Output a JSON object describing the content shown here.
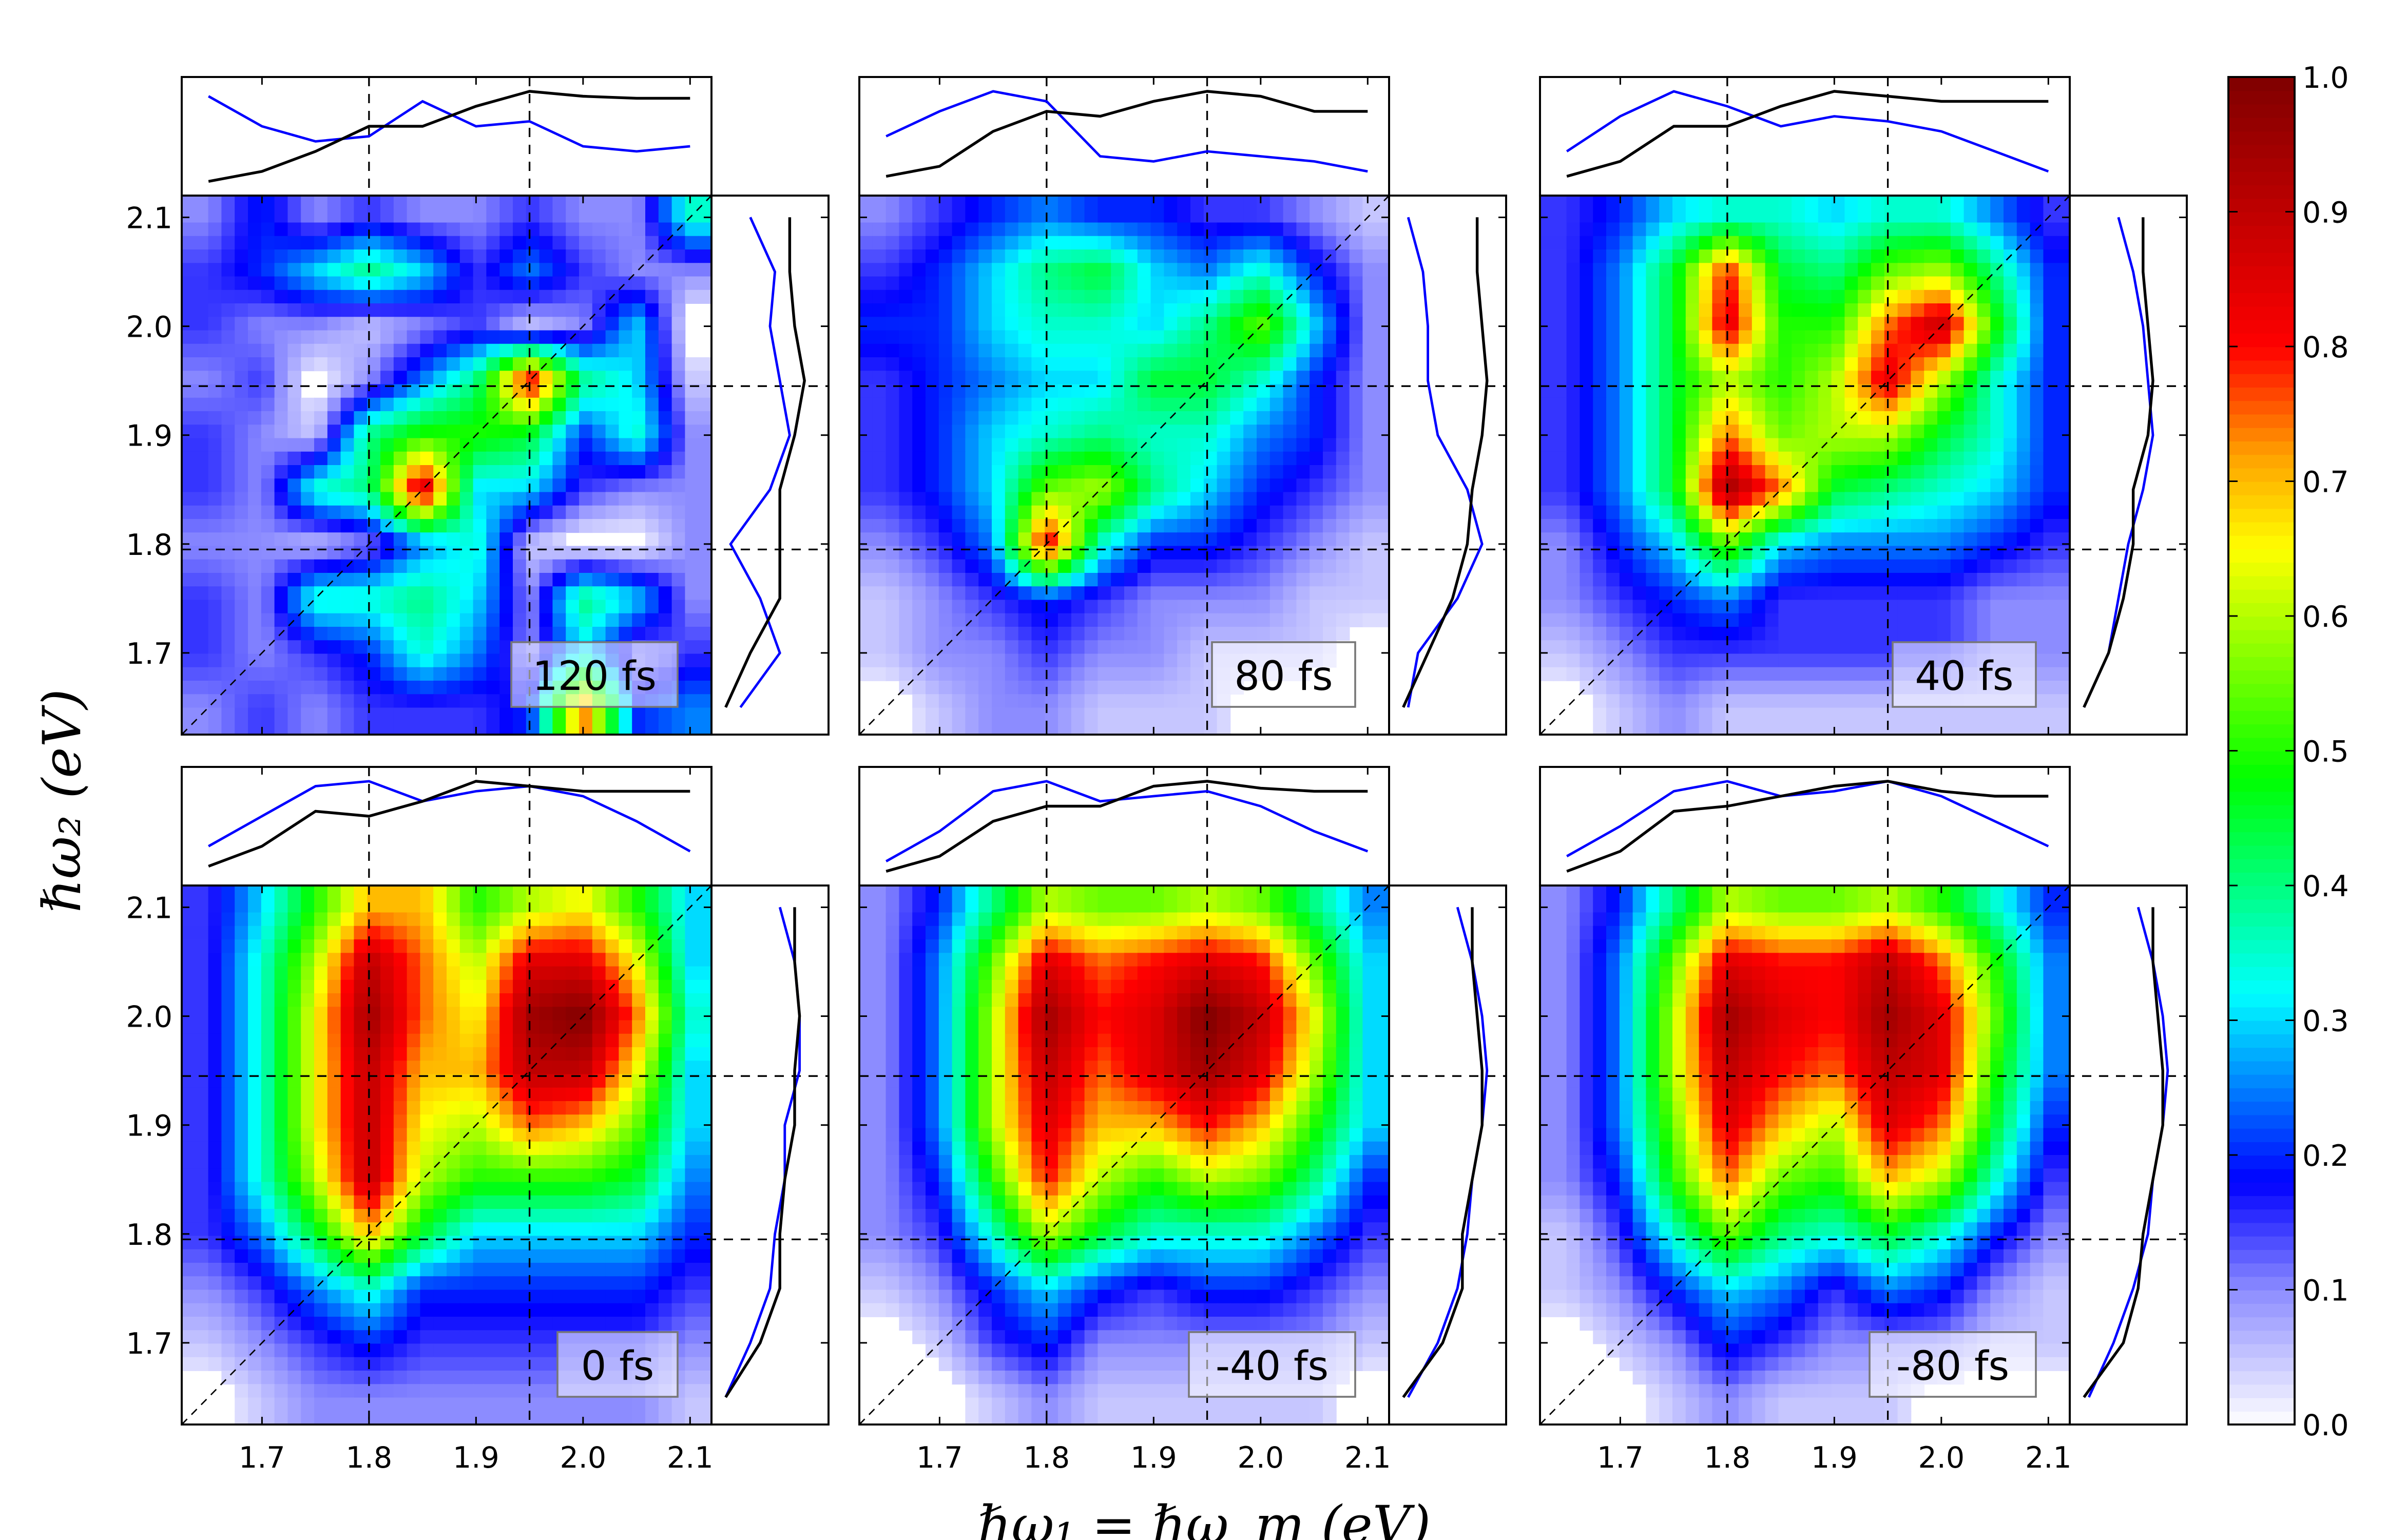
{
  "chart_data": {
    "type": "heatmap",
    "xlabel": "ℏω₁ = ℏω_m (eV)",
    "ylabel": "ℏω₂ (eV)",
    "xlim": [
      1.625,
      2.12
    ],
    "ylim": [
      1.625,
      2.12
    ],
    "xticks": [
      "1.7",
      "1.8",
      "1.9",
      "2.0",
      "2.1"
    ],
    "xtick_values": [
      1.7,
      1.8,
      1.9,
      2.0,
      2.1
    ],
    "yticks": [
      "1.7",
      "1.8",
      "1.9",
      "2.0",
      "2.1"
    ],
    "ytick_values": [
      1.7,
      1.8,
      1.9,
      2.0,
      2.1
    ],
    "reference_lines": {
      "vertical": [
        1.8,
        1.95
      ],
      "horizontal": [
        1.795,
        1.945
      ],
      "diagonal": true
    },
    "grid_axis": [
      1.65,
      1.7,
      1.75,
      1.8,
      1.85,
      1.9,
      1.95,
      2.0,
      2.05,
      2.1
    ],
    "colorbar": {
      "ticks": [
        "0.0",
        "0.1",
        "0.2",
        "0.3",
        "0.4",
        "0.5",
        "0.6",
        "0.7",
        "0.8",
        "0.9",
        "1.0"
      ],
      "range": [
        0,
        1
      ],
      "colormap": [
        [
          0,
          "#ffffff"
        ],
        [
          0.1,
          "#8c8cff"
        ],
        [
          0.18,
          "#0000ff"
        ],
        [
          0.32,
          "#00ffff"
        ],
        [
          0.48,
          "#00ff00"
        ],
        [
          0.65,
          "#ffff00"
        ],
        [
          0.72,
          "#ffa000"
        ],
        [
          0.8,
          "#ff0000"
        ],
        [
          1,
          "#7f0000"
        ]
      ]
    },
    "marginal_colors": {
      "black_curve": "#000000",
      "blue_curve": "#0000ff"
    },
    "panels": [
      {
        "label": "120 fs",
        "values_rows_top_to_bottom": [
          [
            0.1,
            0.2,
            0.1,
            0.15,
            0.1,
            0.1,
            0.15,
            0.1,
            0.1,
            0.35
          ],
          [
            0.15,
            0.2,
            0.3,
            0.4,
            0.3,
            0.15,
            0.25,
            0.15,
            0.1,
            0.1
          ],
          [
            0.15,
            0.1,
            0.1,
            0.05,
            0.1,
            0.15,
            0.05,
            0.1,
            0.3,
            0.0
          ],
          [
            0.1,
            0.15,
            0.0,
            0.1,
            0.25,
            0.4,
            0.85,
            0.4,
            0.3,
            0.05
          ],
          [
            0.15,
            0.1,
            0.05,
            0.4,
            0.5,
            0.5,
            0.45,
            0.2,
            0.35,
            0.1
          ],
          [
            0.15,
            0.1,
            0.35,
            0.4,
            0.9,
            0.3,
            0.3,
            0.15,
            0.1,
            0.1
          ],
          [
            0.1,
            0.1,
            0.05,
            0.1,
            0.25,
            0.35,
            0.05,
            0.0,
            0.0,
            0.1
          ],
          [
            0.15,
            0.1,
            0.35,
            0.35,
            0.4,
            0.3,
            0.1,
            0.4,
            0.3,
            0.1
          ],
          [
            0.15,
            0.1,
            0.15,
            0.2,
            0.35,
            0.25,
            0.1,
            0.3,
            0.1,
            0.15
          ],
          [
            0.1,
            0.15,
            0.1,
            0.15,
            0.15,
            0.15,
            0.2,
            0.75,
            0.2,
            0.25
          ]
        ],
        "top_blue": [
          0.9,
          0.6,
          0.45,
          0.5,
          0.85,
          0.6,
          0.65,
          0.4,
          0.35,
          0.4
        ],
        "top_black": [
          0.05,
          0.15,
          0.35,
          0.6,
          0.6,
          0.8,
          0.95,
          0.9,
          0.88,
          0.88
        ],
        "right_blue": [
          0.2,
          0.6,
          0.4,
          0.1,
          0.5,
          0.7,
          0.6,
          0.5,
          0.55,
          0.3
        ],
        "right_black": [
          0.05,
          0.3,
          0.6,
          0.6,
          0.6,
          0.75,
          0.85,
          0.75,
          0.7,
          0.7
        ]
      },
      {
        "label": "80 fs",
        "values_rows_top_to_bottom": [
          [
            0.1,
            0.15,
            0.2,
            0.25,
            0.2,
            0.2,
            0.15,
            0.15,
            0.1,
            0.05
          ],
          [
            0.15,
            0.2,
            0.3,
            0.4,
            0.45,
            0.3,
            0.25,
            0.35,
            0.2,
            0.1
          ],
          [
            0.2,
            0.2,
            0.3,
            0.35,
            0.35,
            0.3,
            0.4,
            0.55,
            0.3,
            0.1
          ],
          [
            0.15,
            0.2,
            0.25,
            0.3,
            0.3,
            0.45,
            0.45,
            0.35,
            0.2,
            0.1
          ],
          [
            0.15,
            0.2,
            0.3,
            0.35,
            0.4,
            0.35,
            0.35,
            0.25,
            0.2,
            0.1
          ],
          [
            0.15,
            0.2,
            0.3,
            0.55,
            0.6,
            0.4,
            0.3,
            0.2,
            0.15,
            0.1
          ],
          [
            0.1,
            0.15,
            0.25,
            0.85,
            0.35,
            0.2,
            0.2,
            0.15,
            0.1,
            0.05
          ],
          [
            0.05,
            0.1,
            0.15,
            0.2,
            0.15,
            0.1,
            0.1,
            0.1,
            0.05,
            0.05
          ],
          [
            0.05,
            0.1,
            0.1,
            0.15,
            0.1,
            0.1,
            0.05,
            0.05,
            0.05,
            0.0
          ],
          [
            0.0,
            0.05,
            0.1,
            0.1,
            0.05,
            0.05,
            0.05,
            0.0,
            0.0,
            0.0
          ]
        ],
        "top_blue": [
          0.5,
          0.75,
          0.95,
          0.85,
          0.3,
          0.25,
          0.35,
          0.3,
          0.25,
          0.15
        ],
        "top_black": [
          0.1,
          0.2,
          0.55,
          0.75,
          0.7,
          0.85,
          0.95,
          0.9,
          0.75,
          0.75
        ],
        "right_blue": [
          0.1,
          0.2,
          0.6,
          0.85,
          0.7,
          0.4,
          0.3,
          0.3,
          0.25,
          0.1
        ],
        "right_black": [
          0.05,
          0.3,
          0.55,
          0.7,
          0.75,
          0.85,
          0.9,
          0.85,
          0.8,
          0.8
        ]
      },
      {
        "label": "40 fs",
        "values_rows_top_to_bottom": [
          [
            0.15,
            0.2,
            0.3,
            0.35,
            0.35,
            0.3,
            0.35,
            0.35,
            0.25,
            0.15
          ],
          [
            0.15,
            0.25,
            0.45,
            0.8,
            0.45,
            0.4,
            0.55,
            0.6,
            0.4,
            0.2
          ],
          [
            0.15,
            0.25,
            0.45,
            0.85,
            0.5,
            0.5,
            0.75,
            0.9,
            0.5,
            0.2
          ],
          [
            0.15,
            0.25,
            0.45,
            0.6,
            0.5,
            0.6,
            0.85,
            0.6,
            0.35,
            0.2
          ],
          [
            0.15,
            0.25,
            0.45,
            0.75,
            0.55,
            0.6,
            0.6,
            0.45,
            0.35,
            0.2
          ],
          [
            0.15,
            0.25,
            0.45,
            0.95,
            0.75,
            0.45,
            0.4,
            0.35,
            0.3,
            0.2
          ],
          [
            0.1,
            0.2,
            0.3,
            0.55,
            0.3,
            0.25,
            0.25,
            0.25,
            0.2,
            0.15
          ],
          [
            0.1,
            0.15,
            0.2,
            0.25,
            0.15,
            0.15,
            0.15,
            0.15,
            0.1,
            0.1
          ],
          [
            0.05,
            0.1,
            0.15,
            0.15,
            0.15,
            0.15,
            0.15,
            0.15,
            0.1,
            0.1
          ],
          [
            0.0,
            0.05,
            0.1,
            0.05,
            0.05,
            0.05,
            0.05,
            0.05,
            0.05,
            0.05
          ]
        ],
        "top_blue": [
          0.35,
          0.7,
          0.95,
          0.8,
          0.6,
          0.7,
          0.65,
          0.55,
          0.35,
          0.15
        ],
        "top_black": [
          0.1,
          0.25,
          0.6,
          0.6,
          0.8,
          0.95,
          0.9,
          0.85,
          0.85,
          0.85
        ],
        "right_blue": [
          0.05,
          0.3,
          0.4,
          0.5,
          0.65,
          0.75,
          0.7,
          0.65,
          0.55,
          0.4
        ],
        "right_black": [
          0.05,
          0.3,
          0.45,
          0.55,
          0.55,
          0.7,
          0.75,
          0.7,
          0.65,
          0.65
        ]
      },
      {
        "label": "0 fs",
        "values_rows_top_to_bottom": [
          [
            0.15,
            0.3,
            0.5,
            0.7,
            0.7,
            0.5,
            0.6,
            0.65,
            0.5,
            0.3
          ],
          [
            0.15,
            0.35,
            0.6,
            0.9,
            0.75,
            0.6,
            0.85,
            0.85,
            0.65,
            0.3
          ],
          [
            0.15,
            0.35,
            0.65,
            0.95,
            0.75,
            0.65,
            0.95,
            1.0,
            0.75,
            0.35
          ],
          [
            0.15,
            0.35,
            0.65,
            0.9,
            0.7,
            0.7,
            0.9,
            0.9,
            0.65,
            0.3
          ],
          [
            0.15,
            0.35,
            0.65,
            0.9,
            0.65,
            0.6,
            0.75,
            0.7,
            0.55,
            0.3
          ],
          [
            0.15,
            0.35,
            0.6,
            0.9,
            0.6,
            0.5,
            0.5,
            0.5,
            0.45,
            0.25
          ],
          [
            0.15,
            0.25,
            0.45,
            0.7,
            0.45,
            0.3,
            0.3,
            0.3,
            0.3,
            0.2
          ],
          [
            0.1,
            0.15,
            0.25,
            0.35,
            0.2,
            0.2,
            0.2,
            0.2,
            0.2,
            0.15
          ],
          [
            0.05,
            0.1,
            0.15,
            0.2,
            0.15,
            0.15,
            0.15,
            0.15,
            0.15,
            0.1
          ],
          [
            0.0,
            0.05,
            0.1,
            0.1,
            0.1,
            0.1,
            0.1,
            0.1,
            0.1,
            0.05
          ]
        ],
        "top_blue": [
          0.3,
          0.6,
          0.9,
          0.95,
          0.75,
          0.85,
          0.9,
          0.8,
          0.55,
          0.25
        ],
        "top_black": [
          0.1,
          0.3,
          0.65,
          0.6,
          0.75,
          0.95,
          0.9,
          0.85,
          0.85,
          0.85
        ],
        "right_blue": [
          0.05,
          0.3,
          0.5,
          0.55,
          0.65,
          0.65,
          0.8,
          0.8,
          0.75,
          0.6
        ],
        "right_black": [
          0.05,
          0.4,
          0.6,
          0.6,
          0.65,
          0.75,
          0.75,
          0.8,
          0.75,
          0.75
        ]
      },
      {
        "label": "-40 fs",
        "values_rows_top_to_bottom": [
          [
            0.1,
            0.2,
            0.4,
            0.6,
            0.55,
            0.55,
            0.6,
            0.55,
            0.4,
            0.25
          ],
          [
            0.1,
            0.25,
            0.55,
            0.85,
            0.75,
            0.8,
            0.85,
            0.8,
            0.55,
            0.3
          ],
          [
            0.1,
            0.25,
            0.6,
            0.95,
            0.8,
            0.85,
            1.0,
            0.9,
            0.65,
            0.3
          ],
          [
            0.1,
            0.25,
            0.6,
            0.9,
            0.75,
            0.85,
            0.95,
            0.85,
            0.6,
            0.3
          ],
          [
            0.1,
            0.25,
            0.6,
            0.85,
            0.7,
            0.7,
            0.8,
            0.7,
            0.5,
            0.3
          ],
          [
            0.1,
            0.2,
            0.5,
            0.8,
            0.6,
            0.5,
            0.6,
            0.55,
            0.4,
            0.2
          ],
          [
            0.1,
            0.15,
            0.35,
            0.6,
            0.45,
            0.35,
            0.35,
            0.35,
            0.25,
            0.15
          ],
          [
            0.05,
            0.1,
            0.2,
            0.3,
            0.2,
            0.15,
            0.2,
            0.2,
            0.15,
            0.1
          ],
          [
            0.0,
            0.05,
            0.15,
            0.2,
            0.1,
            0.1,
            0.1,
            0.1,
            0.1,
            0.05
          ],
          [
            0.0,
            0.0,
            0.05,
            0.1,
            0.05,
            0.05,
            0.05,
            0.05,
            0.05,
            0.0
          ]
        ],
        "top_blue": [
          0.15,
          0.45,
          0.85,
          0.95,
          0.75,
          0.8,
          0.85,
          0.7,
          0.45,
          0.25
        ],
        "top_black": [
          0.05,
          0.2,
          0.55,
          0.7,
          0.7,
          0.9,
          0.95,
          0.88,
          0.85,
          0.85
        ],
        "right_blue": [
          0.1,
          0.4,
          0.6,
          0.7,
          0.75,
          0.85,
          0.9,
          0.85,
          0.75,
          0.6
        ],
        "right_black": [
          0.05,
          0.45,
          0.65,
          0.65,
          0.75,
          0.85,
          0.85,
          0.8,
          0.75,
          0.75
        ]
      },
      {
        "label": "-80 fs",
        "values_rows_top_to_bottom": [
          [
            0.1,
            0.2,
            0.4,
            0.6,
            0.55,
            0.55,
            0.6,
            0.5,
            0.35,
            0.2
          ],
          [
            0.1,
            0.25,
            0.55,
            0.85,
            0.8,
            0.8,
            0.9,
            0.75,
            0.5,
            0.25
          ],
          [
            0.1,
            0.25,
            0.6,
            0.95,
            0.85,
            0.8,
            0.95,
            0.85,
            0.55,
            0.25
          ],
          [
            0.1,
            0.25,
            0.6,
            0.9,
            0.8,
            0.75,
            0.9,
            0.85,
            0.5,
            0.25
          ],
          [
            0.1,
            0.25,
            0.55,
            0.85,
            0.7,
            0.6,
            0.85,
            0.75,
            0.45,
            0.2
          ],
          [
            0.1,
            0.2,
            0.5,
            0.75,
            0.55,
            0.5,
            0.7,
            0.6,
            0.35,
            0.15
          ],
          [
            0.05,
            0.15,
            0.35,
            0.55,
            0.4,
            0.35,
            0.45,
            0.35,
            0.2,
            0.1
          ],
          [
            0.05,
            0.1,
            0.2,
            0.3,
            0.25,
            0.15,
            0.25,
            0.2,
            0.1,
            0.05
          ],
          [
            0.0,
            0.05,
            0.1,
            0.2,
            0.15,
            0.1,
            0.1,
            0.1,
            0.05,
            0.05
          ],
          [
            0.0,
            0.0,
            0.05,
            0.1,
            0.05,
            0.05,
            0.05,
            0.0,
            0.0,
            0.0
          ]
        ],
        "top_blue": [
          0.2,
          0.5,
          0.85,
          0.95,
          0.8,
          0.85,
          0.95,
          0.8,
          0.55,
          0.3
        ],
        "top_black": [
          0.05,
          0.25,
          0.65,
          0.7,
          0.8,
          0.9,
          0.95,
          0.85,
          0.8,
          0.8
        ],
        "right_blue": [
          0.1,
          0.35,
          0.55,
          0.7,
          0.75,
          0.85,
          0.9,
          0.85,
          0.75,
          0.6
        ],
        "right_black": [
          0.05,
          0.45,
          0.6,
          0.65,
          0.75,
          0.85,
          0.85,
          0.8,
          0.75,
          0.75
        ]
      }
    ]
  }
}
